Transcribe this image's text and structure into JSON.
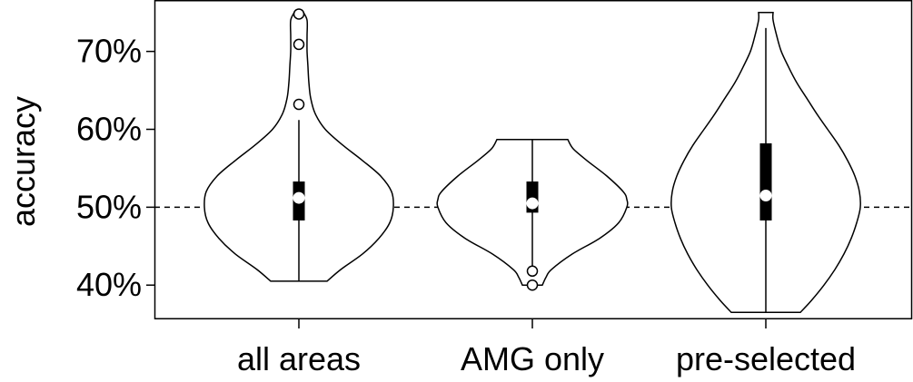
{
  "chart_data": {
    "type": "violin",
    "title": "",
    "xlabel": "",
    "ylabel": "accuracy",
    "ylim": [
      0.356,
      0.766
    ],
    "yticks": [
      0.4,
      0.5,
      0.6,
      0.7
    ],
    "ytick_labels": [
      "40%",
      "50%",
      "60%",
      "70%"
    ],
    "reference_line": {
      "y": 0.5,
      "style": "dashed"
    },
    "categories": [
      "all areas",
      "AMG only",
      "pre-selected"
    ],
    "series": [
      {
        "category": "all areas",
        "min": 0.405,
        "max": 0.75,
        "q1": 0.483,
        "median": 0.512,
        "q3": 0.533,
        "whisker_low": 0.405,
        "whisker_high": 0.612,
        "outliers": [
          0.632,
          0.709,
          0.748
        ],
        "density": [
          [
            0.405,
            31
          ],
          [
            0.42,
            46
          ],
          [
            0.44,
            70
          ],
          [
            0.46,
            88
          ],
          [
            0.48,
            100
          ],
          [
            0.5,
            104
          ],
          [
            0.52,
            102
          ],
          [
            0.54,
            90
          ],
          [
            0.56,
            70
          ],
          [
            0.58,
            48
          ],
          [
            0.6,
            29
          ],
          [
            0.62,
            18
          ],
          [
            0.64,
            13
          ],
          [
            0.66,
            11
          ],
          [
            0.68,
            10
          ],
          [
            0.7,
            9
          ],
          [
            0.72,
            9
          ],
          [
            0.74,
            9
          ],
          [
            0.75,
            5
          ]
        ]
      },
      {
        "category": "AMG only",
        "min": 0.4,
        "max": 0.587,
        "q1": 0.493,
        "median": 0.505,
        "q3": 0.533,
        "whisker_low": 0.418,
        "whisker_high": 0.587,
        "outliers": [
          0.4,
          0.418
        ],
        "density": [
          [
            0.4,
            11
          ],
          [
            0.41,
            15
          ],
          [
            0.42,
            21
          ],
          [
            0.44,
            44
          ],
          [
            0.46,
            74
          ],
          [
            0.48,
            95
          ],
          [
            0.5,
            104
          ],
          [
            0.51,
            104
          ],
          [
            0.52,
            100
          ],
          [
            0.54,
            82
          ],
          [
            0.56,
            60
          ],
          [
            0.575,
            45
          ],
          [
            0.587,
            39
          ]
        ]
      },
      {
        "category": "pre-selected",
        "min": 0.365,
        "max": 0.75,
        "q1": 0.483,
        "median": 0.515,
        "q3": 0.582,
        "whisker_low": 0.365,
        "whisker_high": 0.73,
        "outliers": [],
        "density": [
          [
            0.365,
            38
          ],
          [
            0.38,
            50
          ],
          [
            0.4,
            64
          ],
          [
            0.42,
            76
          ],
          [
            0.44,
            86
          ],
          [
            0.46,
            94
          ],
          [
            0.48,
            100
          ],
          [
            0.5,
            104
          ],
          [
            0.52,
            103
          ],
          [
            0.54,
            98
          ],
          [
            0.56,
            90
          ],
          [
            0.58,
            80
          ],
          [
            0.6,
            68
          ],
          [
            0.62,
            56
          ],
          [
            0.64,
            45
          ],
          [
            0.66,
            34
          ],
          [
            0.68,
            25
          ],
          [
            0.7,
            17
          ],
          [
            0.72,
            12
          ],
          [
            0.74,
            8
          ],
          [
            0.75,
            8
          ]
        ]
      }
    ],
    "colors": {
      "stroke": "#000000",
      "fill": "#ffffff",
      "box": "#000000",
      "median": "#ffffff"
    },
    "grid": false
  }
}
